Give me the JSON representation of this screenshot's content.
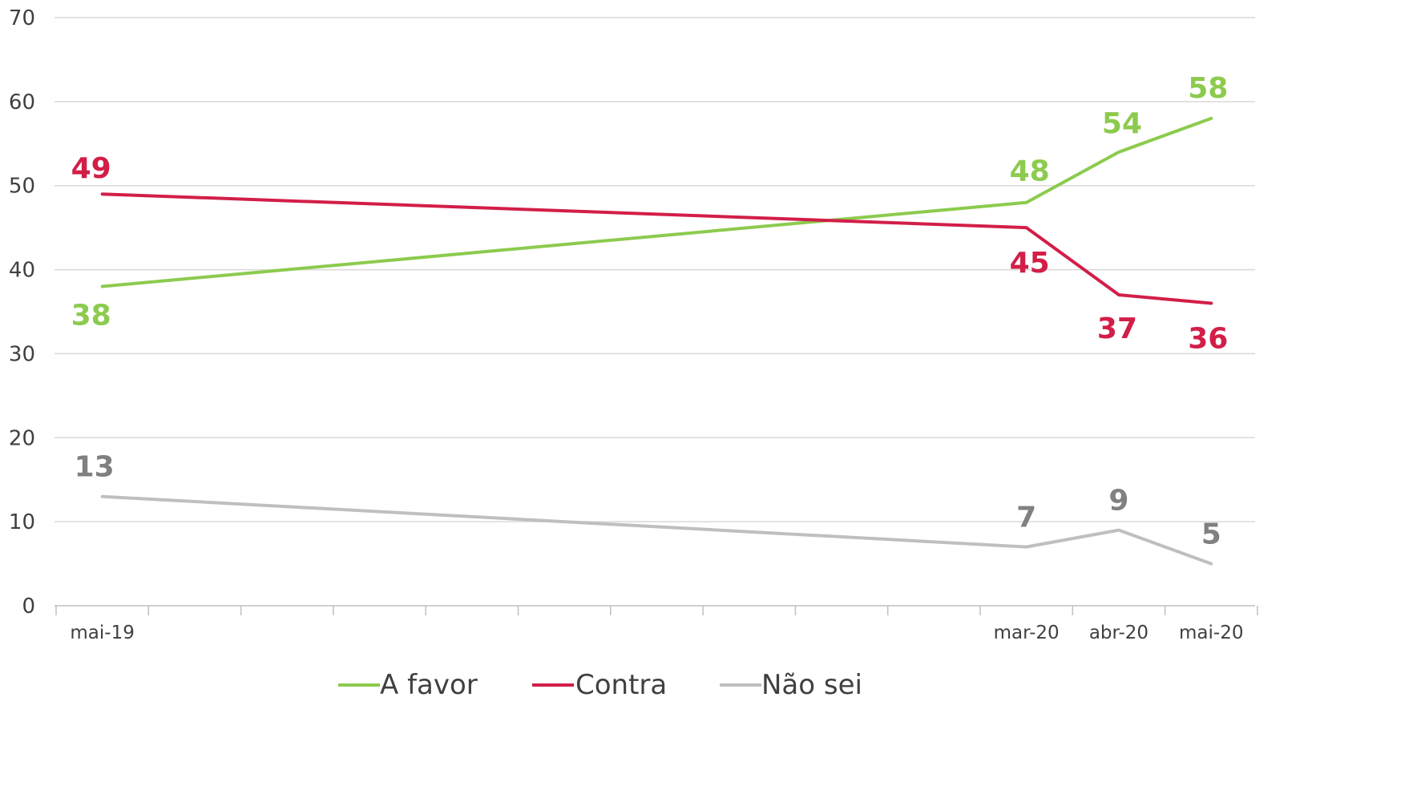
{
  "chart_data": {
    "type": "line",
    "title": "",
    "xlabel": "",
    "ylabel": "",
    "ylim": [
      0,
      70
    ],
    "yticks": [
      "0",
      "10",
      "20",
      "30",
      "40",
      "50",
      "60",
      "70"
    ],
    "grid": true,
    "legend_position": "bottom",
    "x_categories": [
      "mai-19",
      "",
      "",
      "",
      "",
      "",
      "",
      "",
      "",
      "",
      "mar-20",
      "abr-20",
      "mai-20"
    ],
    "series": [
      {
        "name": "A favor",
        "color": "#8CCB4E",
        "points": [
          {
            "x": 0,
            "y": 38,
            "label": "38"
          },
          {
            "x": 10,
            "y": 48,
            "label": "48"
          },
          {
            "x": 11,
            "y": 54,
            "label": "54"
          },
          {
            "x": 12,
            "y": 58,
            "label": "58"
          }
        ]
      },
      {
        "name": "Contra",
        "color": "#D21E48",
        "points": [
          {
            "x": 0,
            "y": 49,
            "label": "49"
          },
          {
            "x": 10,
            "y": 45,
            "label": "45"
          },
          {
            "x": 11,
            "y": 37,
            "label": "37"
          },
          {
            "x": 12,
            "y": 36,
            "label": "36"
          }
        ]
      },
      {
        "name": "Não sei",
        "color": "#BFBFBF",
        "label_color": "#808080",
        "points": [
          {
            "x": 0,
            "y": 13,
            "label": "13"
          },
          {
            "x": 10,
            "y": 7,
            "label": "7"
          },
          {
            "x": 11,
            "y": 9,
            "label": "9"
          },
          {
            "x": 12,
            "y": 5,
            "label": "5"
          }
        ]
      }
    ]
  }
}
